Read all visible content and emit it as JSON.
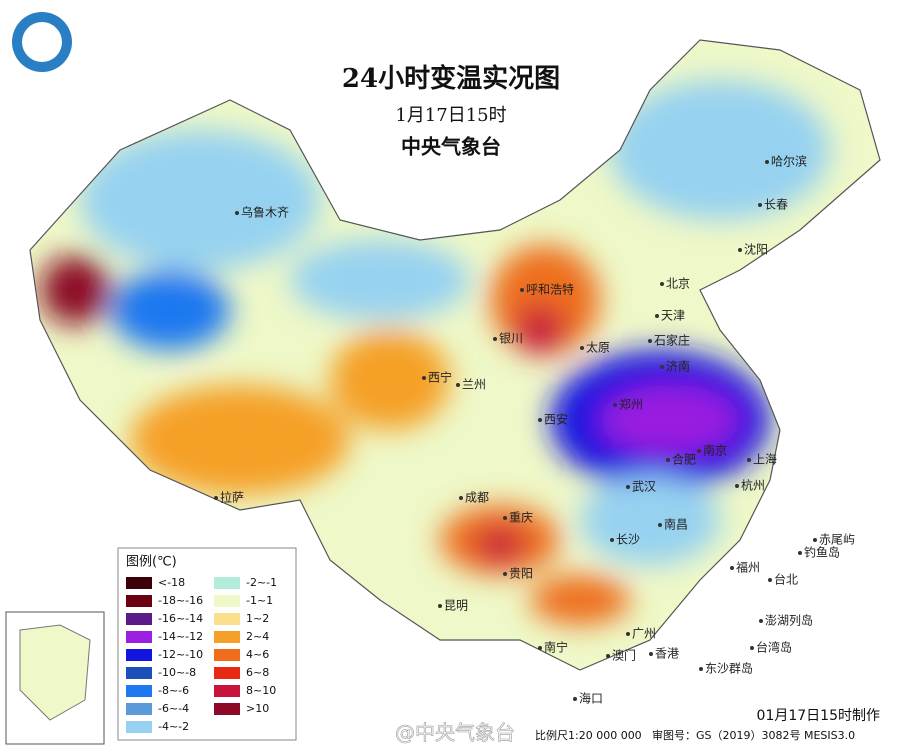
{
  "header": {
    "title": "24小时变温实况图",
    "time": "1月17日15时",
    "issuer": "中央气象台"
  },
  "legend": {
    "title": "图例(℃)",
    "items": [
      {
        "label": "<-18",
        "color": "#3d0008"
      },
      {
        "label": "-18~-16",
        "color": "#6b0010"
      },
      {
        "label": "-16~-14",
        "color": "#5a1a8a"
      },
      {
        "label": "-14~-12",
        "color": "#9a1fe0"
      },
      {
        "label": "-12~-10",
        "color": "#1414e0"
      },
      {
        "label": "-10~-8",
        "color": "#1a50b8"
      },
      {
        "label": "-8~-6",
        "color": "#1e78f0"
      },
      {
        "label": "-6~-4",
        "color": "#5a9ad8"
      },
      {
        "label": "-4~-2",
        "color": "#96d2f0"
      },
      {
        "label": "-2~-1",
        "color": "#b4ecdc"
      },
      {
        "label": "-1~1",
        "color": "#eef8c8"
      },
      {
        "label": "1~2",
        "color": "#f8e08c"
      },
      {
        "label": "2~4",
        "color": "#f5a028"
      },
      {
        "label": "4~6",
        "color": "#ee6e1e"
      },
      {
        "label": "6~8",
        "color": "#e62814"
      },
      {
        "label": "8~10",
        "color": "#c8143c"
      },
      {
        "label": ">10",
        "color": "#8c0a28"
      }
    ]
  },
  "cities": [
    "乌鲁木齐",
    "呼和浩特",
    "北京",
    "天津",
    "石家庄",
    "太原",
    "银川",
    "西宁",
    "兰州",
    "西安",
    "郑州",
    "济南",
    "合肥",
    "南京",
    "上海",
    "杭州",
    "武汉",
    "长沙",
    "南昌",
    "福州",
    "台北",
    "成都",
    "重庆",
    "贵阳",
    "昆明",
    "拉萨",
    "南宁",
    "广州",
    "澳门",
    "香港",
    "海口",
    "哈尔滨",
    "长春",
    "沈阳",
    "赤尾屿",
    "钓鱼岛",
    "澎湖列岛",
    "台湾岛",
    "东沙群岛"
  ],
  "footer": {
    "made": "01月17日15时制作",
    "scale": "比例尺1:20 000 000",
    "approval": "审图号：GS（2019）3082号 MESIS3.0",
    "watermark": "@中央气象台"
  }
}
